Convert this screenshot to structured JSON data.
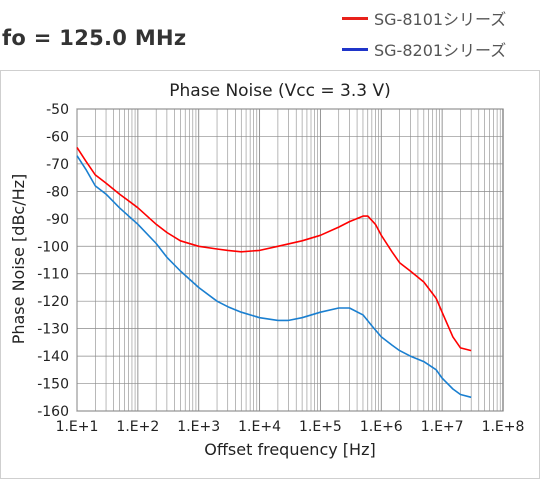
{
  "header": {
    "title": "fo = 125.0 MHz"
  },
  "legend": {
    "items": [
      {
        "label": "SG-8101シリーズ",
        "color": "#e8211b"
      },
      {
        "label": "SG-8201シリーズ",
        "color": "#1f35c9"
      }
    ]
  },
  "chart_data": {
    "type": "line",
    "title": "Phase Noise (Vcc = 3.3 V)",
    "xlabel": "Offset frequency [Hz]",
    "ylabel": "Phase Noise [dBc/Hz]",
    "x_scale": "log",
    "xlim": [
      10,
      100000000
    ],
    "ylim": [
      -160,
      -50
    ],
    "x_ticks": [
      "1.E+1",
      "1.E+2",
      "1.E+3",
      "1.E+4",
      "1.E+5",
      "1.E+6",
      "1.E+7",
      "1.E+8"
    ],
    "y_ticks": [
      "-50",
      "-60",
      "-70",
      "-80",
      "-90",
      "-100",
      "-110",
      "-120",
      "-130",
      "-140",
      "-150",
      "-160"
    ],
    "grid": true,
    "series": [
      {
        "color": "#ff0000",
        "x": [
          10,
          14,
          20,
          30,
          50,
          100,
          200,
          300,
          500,
          1000,
          2000,
          3000,
          5000,
          10000,
          20000,
          50000,
          100000,
          200000,
          300000,
          500000,
          600000,
          800000,
          1000000,
          1500000,
          2000000,
          3000000,
          5000000,
          8000000,
          10000000,
          15000000,
          20000000,
          30000000
        ],
        "y": [
          -64,
          -69,
          -74,
          -77,
          -81,
          -86,
          -92,
          -95,
          -98,
          -100,
          -101,
          -101.5,
          -102,
          -101.5,
          -100,
          -98,
          -96,
          -93,
          -91,
          -89,
          -89,
          -92,
          -96,
          -102,
          -106,
          -109,
          -113,
          -119,
          -124,
          -133,
          -137,
          -138
        ]
      },
      {
        "color": "#1a7fd0",
        "x": [
          10,
          14,
          20,
          30,
          50,
          100,
          200,
          300,
          500,
          1000,
          2000,
          3000,
          5000,
          10000,
          20000,
          30000,
          50000,
          100000,
          200000,
          300000,
          500000,
          700000,
          1000000,
          1500000,
          2000000,
          3000000,
          5000000,
          8000000,
          10000000,
          15000000,
          20000000,
          30000000
        ],
        "y": [
          -67,
          -72,
          -78,
          -81,
          -86,
          -92,
          -99,
          -104,
          -109,
          -115,
          -120,
          -122,
          -124,
          -126,
          -127,
          -127,
          -126,
          -124,
          -122.5,
          -122.5,
          -125,
          -129,
          -133,
          -136,
          -138,
          -140,
          -142,
          -145,
          -148,
          -152,
          -154,
          -155
        ]
      }
    ]
  }
}
